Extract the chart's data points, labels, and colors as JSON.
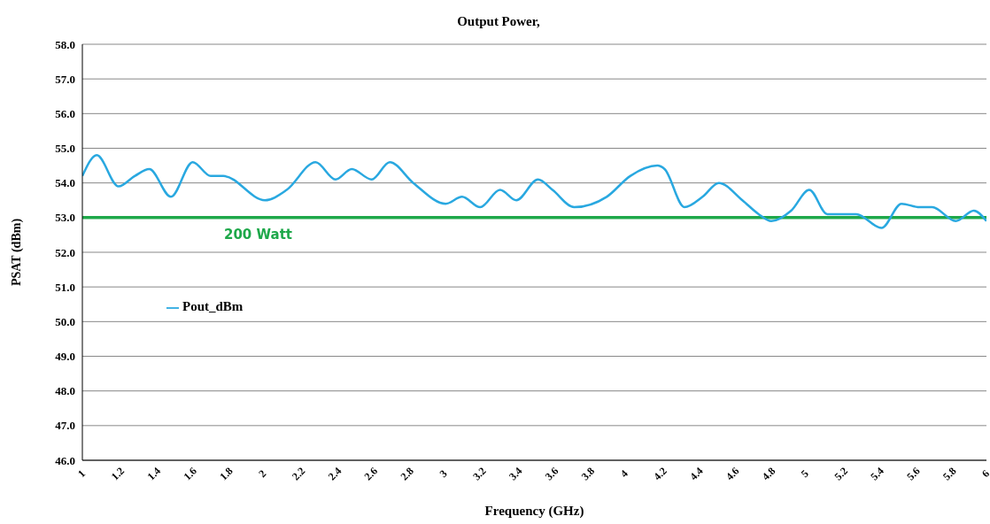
{
  "chart_data": {
    "type": "line",
    "title": "Output Power,",
    "xlabel": "Frequency (GHz)",
    "ylabel": "PSAT (dBm)",
    "x": [
      1.0,
      1.08,
      1.2,
      1.29,
      1.37,
      1.49,
      1.61,
      1.71,
      1.78,
      2.01,
      2.13,
      2.29,
      2.4,
      2.49,
      2.6,
      2.7,
      2.83,
      3.01,
      3.1,
      3.2,
      3.31,
      3.4,
      3.52,
      3.6,
      3.72,
      3.9,
      4.03,
      4.18,
      4.22,
      4.33,
      4.43,
      4.52,
      4.65,
      4.74,
      4.81,
      4.92,
      5.02,
      5.12,
      5.28,
      5.42,
      5.53,
      5.63,
      5.7,
      5.83,
      5.93,
      6.0
    ],
    "series": [
      {
        "name": "Pout_dBm",
        "color": "#29a8e0",
        "values": [
          54.2,
          54.8,
          53.9,
          54.2,
          54.4,
          53.6,
          54.6,
          54.2,
          54.2,
          53.5,
          53.8,
          54.6,
          54.1,
          54.4,
          54.1,
          54.6,
          54.0,
          53.4,
          53.6,
          53.3,
          53.8,
          53.5,
          54.1,
          53.8,
          53.3,
          53.6,
          54.2,
          54.5,
          54.4,
          53.3,
          53.6,
          54.0,
          53.5,
          53.1,
          52.9,
          53.2,
          53.8,
          53.1,
          53.1,
          52.7,
          53.4,
          53.3,
          53.3,
          52.9,
          53.2,
          52.9
        ]
      }
    ],
    "xlim": [
      1,
      6
    ],
    "xticks": [
      1,
      1.2,
      1.4,
      1.6,
      1.8,
      2,
      2.2,
      2.4,
      2.6,
      2.8,
      3,
      3.2,
      3.4,
      3.6,
      3.8,
      4,
      4.2,
      4.4,
      4.6,
      4.8,
      5,
      5.2,
      5.4,
      5.6,
      5.8,
      6
    ],
    "ylim": [
      46,
      58
    ],
    "yticks": [
      {
        "value": 46,
        "label": "46.0"
      },
      {
        "value": 47,
        "label": "47.0"
      },
      {
        "value": 48,
        "label": "48.0"
      },
      {
        "value": 49,
        "label": "49.0"
      },
      {
        "value": 50,
        "label": "50.0"
      },
      {
        "value": 51,
        "label": "51.0"
      },
      {
        "value": 52,
        "label": "52.0"
      },
      {
        "value": 53,
        "label": "53.0"
      },
      {
        "value": 54,
        "label": "54.0"
      },
      {
        "value": 55,
        "label": "55.0"
      },
      {
        "value": 56,
        "label": "56.0"
      },
      {
        "value": 57,
        "label": "57.0"
      },
      {
        "value": 58,
        "label": "58.0"
      }
    ],
    "ref_lines": [
      {
        "axis": "y",
        "value": 53,
        "label": "200 Watt",
        "color": "#1ea84a"
      }
    ],
    "grid": "y",
    "legend": "left",
    "marker": "none",
    "line_style": "solid"
  }
}
